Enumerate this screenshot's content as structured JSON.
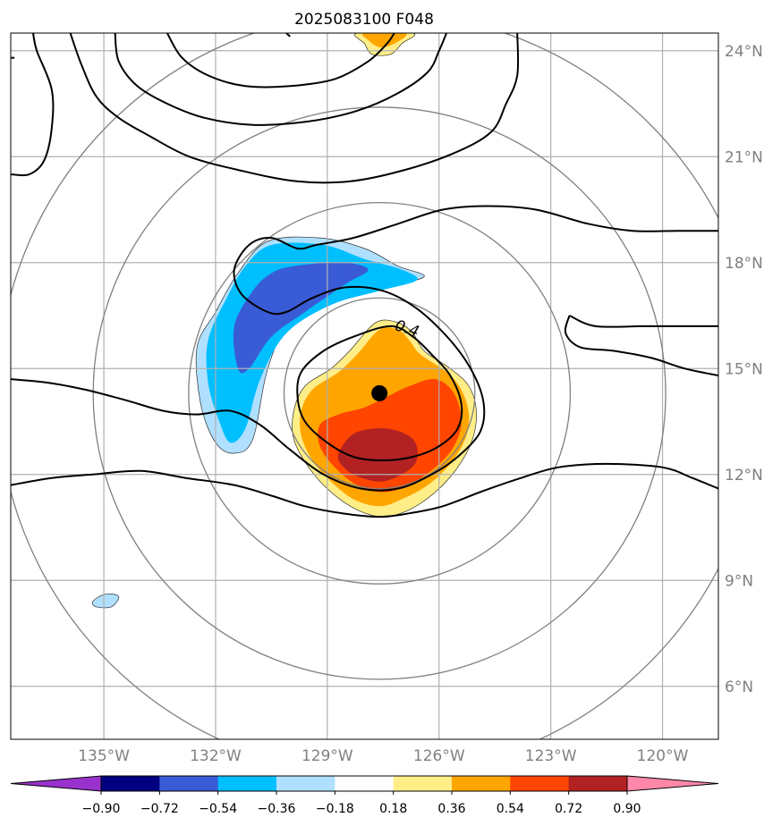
{
  "chart_data": {
    "type": "contour-map",
    "title": "2025083100 F048",
    "lon_range": [
      -137.5,
      -118.5
    ],
    "lat_range": [
      4.5,
      24.5
    ],
    "lon_ticks": [
      {
        "value": -135,
        "label": "135°W"
      },
      {
        "value": -132,
        "label": "132°W"
      },
      {
        "value": -129,
        "label": "129°W"
      },
      {
        "value": -126,
        "label": "126°W"
      },
      {
        "value": -123,
        "label": "123°W"
      },
      {
        "value": -120,
        "label": "120°W"
      }
    ],
    "lat_ticks": [
      {
        "value": 6,
        "label": "6°N"
      },
      {
        "value": 9,
        "label": "9°N"
      },
      {
        "value": 12,
        "label": "12°N"
      },
      {
        "value": 15,
        "label": "15°N"
      },
      {
        "value": 18,
        "label": "18°N"
      },
      {
        "value": 21,
        "label": "21°N"
      },
      {
        "value": 24,
        "label": "24°N"
      }
    ],
    "storm_center": {
      "lon": -127.6,
      "lat": 14.3
    },
    "range_rings_deg": [
      2.7,
      5.4,
      8.1,
      10.8
    ],
    "contour_label": {
      "text": "0.4",
      "lon": -126.9,
      "lat": 16.0
    },
    "colorbar": {
      "levels": [
        "−0.90",
        "−0.72",
        "−0.54",
        "−0.36",
        "−0.18",
        "0.18",
        "0.36",
        "0.54",
        "0.72",
        "0.90"
      ],
      "colors": [
        "#9932cc",
        "#000080",
        "#3a5bd6",
        "#00bfff",
        "#b0e0ff",
        "#ffffff",
        "#ffee88",
        "#ffa500",
        "#ff4500",
        "#b22222",
        "#ff88aa"
      ],
      "extend": "both"
    },
    "filled_regions": [
      {
        "color": "#b0e0ff",
        "value": "-0.18",
        "points": [
          [
            -130.6,
            18.6
          ],
          [
            -129.2,
            18.7
          ],
          [
            -128.0,
            18.4
          ],
          [
            -127.1,
            17.9
          ],
          [
            -126.4,
            17.6
          ],
          [
            -127.5,
            17.3
          ],
          [
            -128.8,
            16.9
          ],
          [
            -130.0,
            16.3
          ],
          [
            -130.6,
            15.0
          ],
          [
            -131.0,
            13.0
          ],
          [
            -131.5,
            12.6
          ],
          [
            -132.0,
            12.9
          ],
          [
            -132.4,
            14.0
          ],
          [
            -132.5,
            15.6
          ],
          [
            -132.0,
            16.6
          ],
          [
            -131.4,
            17.7
          ]
        ]
      },
      {
        "color": "#00bfff",
        "value": "-0.36",
        "points": [
          [
            -130.5,
            18.5
          ],
          [
            -129.1,
            18.5
          ],
          [
            -128.0,
            18.1
          ],
          [
            -127.0,
            17.8
          ],
          [
            -126.6,
            17.5
          ],
          [
            -127.6,
            17.2
          ],
          [
            -128.9,
            16.8
          ],
          [
            -130.1,
            16.0
          ],
          [
            -130.8,
            14.7
          ],
          [
            -131.2,
            13.3
          ],
          [
            -131.6,
            12.9
          ],
          [
            -131.9,
            13.5
          ],
          [
            -132.2,
            14.6
          ],
          [
            -132.2,
            15.8
          ],
          [
            -131.7,
            17.0
          ],
          [
            -131.2,
            17.9
          ]
        ]
      },
      {
        "color": "#3a5bd6",
        "value": "-0.54",
        "points": [
          [
            -129.9,
            17.9
          ],
          [
            -128.6,
            18.0
          ],
          [
            -127.9,
            17.8
          ],
          [
            -128.5,
            17.4
          ],
          [
            -129.6,
            16.6
          ],
          [
            -130.5,
            15.9
          ],
          [
            -131.1,
            15.0
          ],
          [
            -131.4,
            15.0
          ],
          [
            -131.5,
            16.2
          ],
          [
            -131.0,
            17.2
          ],
          [
            -130.5,
            17.7
          ]
        ]
      },
      {
        "color": "#b0e0ff",
        "value": "-0.18",
        "points": [
          [
            -134.7,
            8.6
          ],
          [
            -134.6,
            8.5
          ],
          [
            -134.8,
            8.25
          ],
          [
            -135.2,
            8.25
          ],
          [
            -135.3,
            8.4
          ],
          [
            -135.0,
            8.6
          ]
        ]
      },
      {
        "color": "#ffee88",
        "value": "0.36",
        "points": [
          [
            -127.7,
            16.3
          ],
          [
            -127.1,
            16.3
          ],
          [
            -126.7,
            16.0
          ],
          [
            -126.4,
            15.5
          ],
          [
            -125.7,
            15.0
          ],
          [
            -125.2,
            14.5
          ],
          [
            -125.0,
            13.8
          ],
          [
            -125.1,
            13.0
          ],
          [
            -125.5,
            12.2
          ],
          [
            -126.1,
            11.5
          ],
          [
            -126.8,
            11.0
          ],
          [
            -127.5,
            10.8
          ],
          [
            -128.2,
            11.0
          ],
          [
            -128.9,
            11.5
          ],
          [
            -129.5,
            12.2
          ],
          [
            -129.9,
            13.0
          ],
          [
            -129.9,
            13.8
          ],
          [
            -129.6,
            14.5
          ],
          [
            -128.9,
            15.0
          ],
          [
            -128.4,
            15.5
          ]
        ]
      },
      {
        "color": "#ffa500",
        "value": "0.54",
        "points": [
          [
            -127.6,
            16.1
          ],
          [
            -127.1,
            16.1
          ],
          [
            -126.8,
            15.8
          ],
          [
            -126.5,
            15.4
          ],
          [
            -125.8,
            14.9
          ],
          [
            -125.4,
            14.4
          ],
          [
            -125.2,
            13.7
          ],
          [
            -125.3,
            13.0
          ],
          [
            -125.7,
            12.3
          ],
          [
            -126.3,
            11.7
          ],
          [
            -127.0,
            11.3
          ],
          [
            -127.6,
            11.1
          ],
          [
            -128.3,
            11.3
          ],
          [
            -128.9,
            11.8
          ],
          [
            -129.4,
            12.4
          ],
          [
            -129.7,
            13.1
          ],
          [
            -129.7,
            13.8
          ],
          [
            -129.4,
            14.4
          ],
          [
            -128.7,
            14.9
          ],
          [
            -128.2,
            15.4
          ]
        ]
      },
      {
        "color": "#ff4500",
        "value": "0.72",
        "points": [
          [
            -126.8,
            14.5
          ],
          [
            -126.1,
            14.7
          ],
          [
            -125.6,
            14.3
          ],
          [
            -125.4,
            13.5
          ],
          [
            -125.6,
            12.8
          ],
          [
            -126.1,
            12.2
          ],
          [
            -126.8,
            11.7
          ],
          [
            -127.5,
            11.5
          ],
          [
            -128.2,
            11.7
          ],
          [
            -128.8,
            12.2
          ],
          [
            -129.2,
            12.8
          ],
          [
            -129.2,
            13.4
          ],
          [
            -128.7,
            13.7
          ],
          [
            -128.0,
            13.9
          ],
          [
            -127.4,
            14.2
          ]
        ]
      },
      {
        "color": "#b22222",
        "value": "0.90",
        "points": [
          [
            -128.2,
            13.2
          ],
          [
            -127.4,
            13.3
          ],
          [
            -126.7,
            13.0
          ],
          [
            -126.6,
            12.4
          ],
          [
            -127.0,
            12.0
          ],
          [
            -127.6,
            11.8
          ],
          [
            -128.3,
            12.0
          ],
          [
            -128.7,
            12.4
          ],
          [
            -128.6,
            12.8
          ]
        ]
      },
      {
        "color": "#ffee88",
        "value": "0.36",
        "points": [
          [
            -128.2,
            24.5
          ],
          [
            -126.7,
            24.5
          ],
          [
            -127.0,
            24.2
          ],
          [
            -127.3,
            23.9
          ],
          [
            -127.8,
            23.9
          ],
          [
            -128.0,
            24.2
          ]
        ]
      },
      {
        "color": "#ffa500",
        "value": "0.54",
        "points": [
          [
            -128.0,
            24.5
          ],
          [
            -126.9,
            24.5
          ],
          [
            -127.2,
            24.2
          ],
          [
            -127.6,
            24.1
          ],
          [
            -127.9,
            24.3
          ]
        ]
      }
    ],
    "contours": [
      {
        "closed": false,
        "points": [
          [
            -137.5,
            11.7
          ],
          [
            -136.4,
            11.9
          ],
          [
            -135.3,
            12.0
          ],
          [
            -134.0,
            12.1
          ],
          [
            -132.8,
            11.9
          ],
          [
            -131.5,
            11.7
          ],
          [
            -130.5,
            11.4
          ],
          [
            -129.6,
            11.1
          ],
          [
            -128.6,
            10.9
          ],
          [
            -127.6,
            10.8
          ],
          [
            -126.8,
            10.9
          ],
          [
            -125.9,
            11.1
          ],
          [
            -124.9,
            11.5
          ],
          [
            -123.8,
            11.9
          ],
          [
            -122.8,
            12.2
          ],
          [
            -121.5,
            12.3
          ],
          [
            -120.0,
            12.2
          ],
          [
            -119.2,
            11.9
          ],
          [
            -118.5,
            11.6
          ]
        ]
      },
      {
        "closed": false,
        "points": [
          [
            -137.5,
            14.7
          ],
          [
            -136.5,
            14.6
          ],
          [
            -135.5,
            14.4
          ],
          [
            -134.4,
            14.1
          ],
          [
            -133.4,
            13.8
          ],
          [
            -132.5,
            13.7
          ],
          [
            -131.6,
            13.8
          ],
          [
            -130.8,
            13.4
          ],
          [
            -130.0,
            12.7
          ],
          [
            -129.1,
            12.0
          ],
          [
            -128.1,
            11.6
          ],
          [
            -127.1,
            11.6
          ],
          [
            -126.2,
            12.0
          ],
          [
            -125.5,
            12.5
          ],
          [
            -124.9,
            13.2
          ],
          [
            -124.8,
            14.0
          ],
          [
            -125.1,
            14.9
          ],
          [
            -125.7,
            15.8
          ],
          [
            -126.6,
            16.7
          ],
          [
            -127.5,
            17.2
          ],
          [
            -128.5,
            17.3
          ],
          [
            -129.4,
            17.0
          ],
          [
            -130.1,
            16.6
          ],
          [
            -130.6,
            16.6
          ],
          [
            -131.3,
            17.1
          ],
          [
            -131.5,
            17.8
          ],
          [
            -131.1,
            18.5
          ],
          [
            -130.5,
            18.7
          ],
          [
            -129.8,
            18.4
          ],
          [
            -129.3,
            18.5
          ],
          [
            -128.3,
            18.7
          ],
          [
            -127.1,
            19.1
          ],
          [
            -125.9,
            19.5
          ],
          [
            -124.7,
            19.6
          ],
          [
            -123.4,
            19.5
          ],
          [
            -122.0,
            19.1
          ],
          [
            -120.8,
            18.9
          ],
          [
            -119.6,
            18.9
          ],
          [
            -118.5,
            18.9
          ]
        ]
      },
      {
        "closed": true,
        "points": [
          [
            -127.3,
            16.2
          ],
          [
            -126.7,
            15.9
          ],
          [
            -126.2,
            15.4
          ],
          [
            -125.7,
            14.8
          ],
          [
            -125.4,
            14.0
          ],
          [
            -125.5,
            13.3
          ],
          [
            -126.0,
            12.8
          ],
          [
            -126.7,
            12.5
          ],
          [
            -127.5,
            12.4
          ],
          [
            -128.3,
            12.5
          ],
          [
            -129.0,
            12.9
          ],
          [
            -129.6,
            13.5
          ],
          [
            -129.8,
            14.2
          ],
          [
            -129.7,
            14.9
          ],
          [
            -129.1,
            15.5
          ],
          [
            -128.3,
            15.9
          ]
        ]
      },
      {
        "closed": false,
        "points": [
          [
            -122.5,
            16.5
          ],
          [
            -121.8,
            16.2
          ],
          [
            -120.5,
            16.2
          ],
          [
            -119.3,
            16.2
          ],
          [
            -118.5,
            16.2
          ]
        ]
      },
      {
        "closed": false,
        "points": [
          [
            -122.5,
            16.5
          ],
          [
            -122.6,
            16.0
          ],
          [
            -122.2,
            15.6
          ],
          [
            -121.3,
            15.5
          ],
          [
            -120.3,
            15.3
          ],
          [
            -119.4,
            15.0
          ],
          [
            -118.5,
            14.8
          ]
        ]
      },
      {
        "closed": false,
        "points": [
          [
            -137.5,
            20.5
          ],
          [
            -137.0,
            20.5
          ],
          [
            -136.6,
            20.9
          ],
          [
            -136.4,
            21.8
          ],
          [
            -136.4,
            22.9
          ],
          [
            -136.8,
            24.0
          ],
          [
            -136.9,
            24.5
          ]
        ]
      },
      {
        "closed": false,
        "points": [
          [
            -137.5,
            23.8
          ],
          [
            -137.4,
            23.8
          ]
        ]
      },
      {
        "closed": false,
        "points": [
          [
            -135.9,
            24.5
          ],
          [
            -135.6,
            23.6
          ],
          [
            -135.2,
            22.7
          ],
          [
            -134.6,
            22.1
          ],
          [
            -133.8,
            21.6
          ],
          [
            -132.7,
            21.0
          ],
          [
            -131.3,
            20.6
          ],
          [
            -129.8,
            20.3
          ],
          [
            -128.4,
            20.3
          ],
          [
            -127.0,
            20.6
          ],
          [
            -125.6,
            21.1
          ],
          [
            -124.6,
            21.7
          ],
          [
            -124.2,
            22.5
          ],
          [
            -123.9,
            23.3
          ],
          [
            -123.9,
            24.5
          ]
        ]
      },
      {
        "closed": false,
        "points": [
          [
            -134.7,
            24.5
          ],
          [
            -134.6,
            23.7
          ],
          [
            -134.1,
            23.0
          ],
          [
            -133.3,
            22.5
          ],
          [
            -132.3,
            22.1
          ],
          [
            -131.0,
            21.9
          ],
          [
            -129.5,
            22.0
          ],
          [
            -128.2,
            22.3
          ],
          [
            -127.1,
            22.8
          ],
          [
            -126.3,
            23.4
          ],
          [
            -126.0,
            24.0
          ],
          [
            -125.8,
            24.5
          ]
        ]
      },
      {
        "closed": false,
        "points": [
          [
            -133.3,
            24.5
          ],
          [
            -132.9,
            23.8
          ],
          [
            -132.2,
            23.3
          ],
          [
            -131.2,
            23.0
          ],
          [
            -130.0,
            23.0
          ],
          [
            -128.8,
            23.2
          ],
          [
            -127.9,
            23.7
          ],
          [
            -127.4,
            24.2
          ],
          [
            -127.2,
            24.5
          ]
        ]
      },
      {
        "closed": false,
        "points": [
          [
            -130.1,
            24.5
          ],
          [
            -130.0,
            24.4
          ]
        ]
      }
    ]
  }
}
